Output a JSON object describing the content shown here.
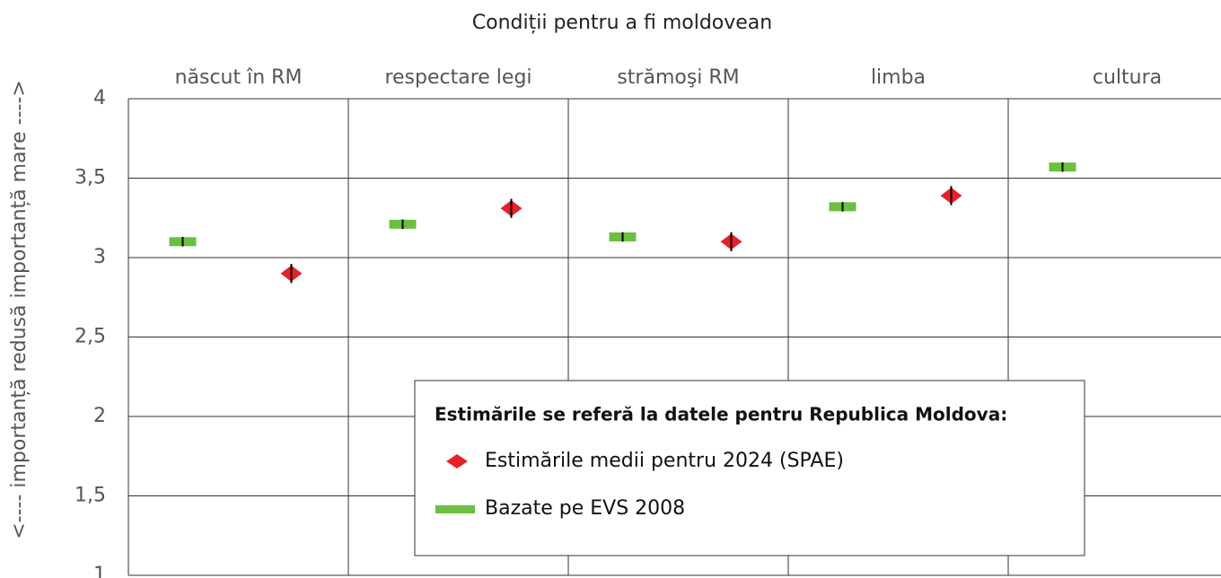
{
  "chart_data": {
    "type": "dot",
    "title": "Condiții pentru a fi moldovean",
    "ylabel": "<---- importanță redusă   importanță mare ---->",
    "categories": [
      "născut în RM",
      "respectare legi",
      "strămoşi RM",
      "limba",
      "cultura"
    ],
    "ylim": [
      1,
      4
    ],
    "yticks": [
      1,
      {
        "value": 1.5,
        "label": "1,5"
      },
      2,
      {
        "value": 2.5,
        "label": "2,5"
      },
      3,
      {
        "value": 3.5,
        "label": "3,5"
      },
      4
    ],
    "grid": true,
    "legend_title": "Estimările se referă la datele pentru Republica Moldova:",
    "series": [
      {
        "name": "Estimările medii pentru 2024 (SPAE)",
        "color": "#e8202a",
        "marker": "diamond",
        "values": [
          2.9,
          3.31,
          3.1,
          3.39,
          null
        ],
        "errors": [
          0.06,
          0.06,
          0.06,
          0.06,
          null
        ]
      },
      {
        "name": "Bazate pe EVS 2008",
        "color": "#6cbf3f",
        "marker": "bar",
        "values": [
          3.1,
          3.21,
          3.13,
          3.32,
          3.57
        ],
        "errors": [
          0.03,
          0.03,
          0.03,
          0.03,
          0.03
        ]
      }
    ]
  }
}
